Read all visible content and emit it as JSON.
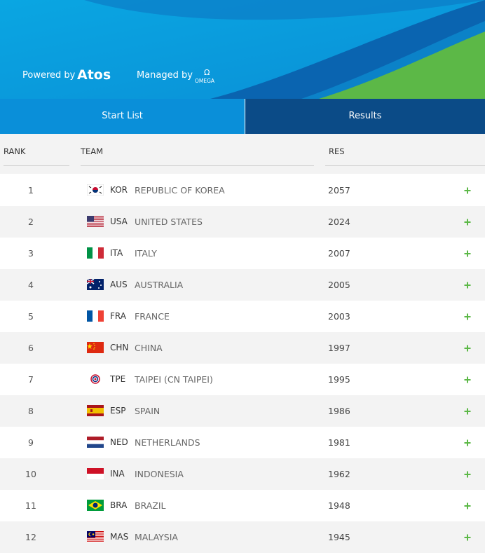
{
  "header": {
    "powered_by": "Powered by",
    "atos": "Atos",
    "managed_by": "Managed by",
    "omega_symbol": "Ω",
    "omega": "OMEGA"
  },
  "tabs": [
    "Start List",
    "Results"
  ],
  "table": {
    "columns": [
      "RANK",
      "TEAM",
      "RES"
    ],
    "rows": [
      [
        1,
        "KOR",
        "REPUBLIC OF KOREA",
        2057
      ],
      [
        2,
        "USA",
        "UNITED STATES",
        2024
      ],
      [
        3,
        "ITA",
        "ITALY",
        2007
      ],
      [
        4,
        "AUS",
        "AUSTRALIA",
        2005
      ],
      [
        5,
        "FRA",
        "FRANCE",
        2003
      ],
      [
        6,
        "CHN",
        "CHINA",
        1997
      ],
      [
        7,
        "TPE",
        "TAIPEI (CN TAIPEI)",
        1995
      ],
      [
        8,
        "ESP",
        "SPAIN",
        1986
      ],
      [
        9,
        "NED",
        "NETHERLANDS",
        1981
      ],
      [
        10,
        "INA",
        "INDONESIA",
        1962
      ],
      [
        11,
        "BRA",
        "BRAZIL",
        1948
      ],
      [
        12,
        "MAS",
        "MALAYSIA",
        1945
      ]
    ]
  }
}
